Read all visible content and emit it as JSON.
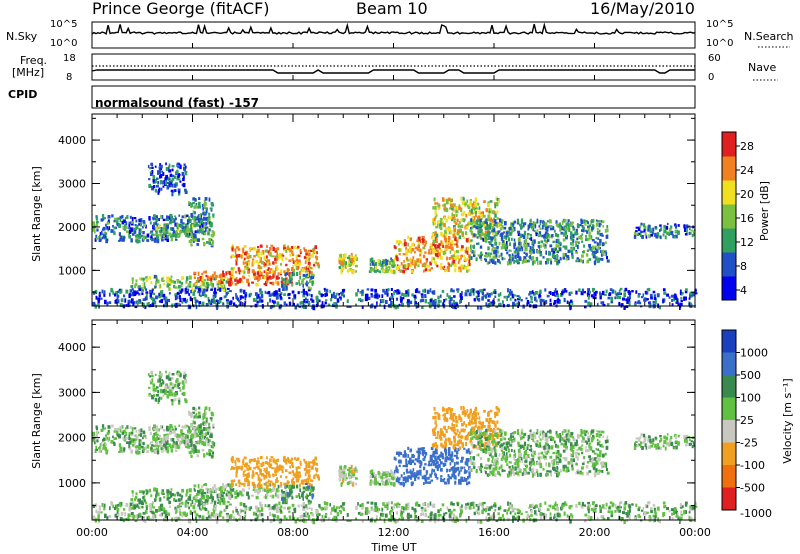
{
  "header": {
    "radar": "Prince George (fitACF)",
    "beam": "Beam 10",
    "date": "16/May/2010"
  },
  "nsky_panel": {
    "label": "N.Sky",
    "right_label": "N.Search",
    "left_ticks": [
      "10^5",
      "10^0"
    ],
    "right_ticks": [
      "10^5",
      "10^0"
    ]
  },
  "freq_panel": {
    "label_line1": "Freq.",
    "label_line2": "[MHz]",
    "right_label": "Nave",
    "left_ticks": [
      "18",
      "8"
    ],
    "right_ticks": [
      "60",
      "0"
    ]
  },
  "cpid": {
    "label": "CPID",
    "text": "normalsound (fast) -157"
  },
  "power_panel": {
    "ylabel": "Slant Range [km]",
    "yticks": [
      "4000",
      "3000",
      "2000",
      "1000"
    ],
    "colorbar_label": "Power [dB]",
    "colorbar_ticks": [
      "28",
      "24",
      "20",
      "16",
      "12",
      "8",
      "4"
    ],
    "colors": [
      "#0000ee",
      "#2050c8",
      "#30a060",
      "#7cc040",
      "#f0e020",
      "#f08020",
      "#e02020"
    ]
  },
  "velocity_panel": {
    "ylabel": "Slant Range [km]",
    "yticks": [
      "4000",
      "3000",
      "2000",
      "1000"
    ],
    "colorbar_label": "Velocity [m s⁻¹]",
    "colorbar_ticks": [
      "1000",
      "500",
      "100",
      "25",
      "-25",
      "-100",
      "-500",
      "-1000"
    ],
    "colors": [
      "#1a40c0",
      "#3a70c8",
      "#3a8a50",
      "#60c040",
      "#c8c8c0",
      "#f0a020",
      "#f07010",
      "#e02020"
    ]
  },
  "xaxis": {
    "label": "Time UT",
    "ticks": [
      "00:00",
      "04:00",
      "08:00",
      "12:00",
      "16:00",
      "20:00",
      "00:00"
    ]
  },
  "chart_data": {
    "type": "heatmap",
    "title": "Prince George (fitACF)  Beam 10  16/May/2010",
    "xlabel": "Time UT",
    "xlim_hours": [
      0,
      24
    ],
    "ylabel": "Slant Range [km]",
    "ylim_km": [
      180,
      4600
    ],
    "panels": [
      "N.Sky / N.Search",
      "Freq. / Nave",
      "CPID",
      "Power [dB]",
      "Velocity [m s-1]"
    ],
    "power_colorbar_range_db": [
      0,
      30
    ],
    "velocity_colorbar_range_ms": [
      -1000,
      1000
    ],
    "echo_regions": [
      {
        "t_start": 0.0,
        "t_end": 4.5,
        "range_km": [
          1700,
          2300
        ],
        "power_db": 8,
        "velocity_ms": 0
      },
      {
        "t_start": 2.5,
        "t_end": 4.0,
        "range_km": [
          1800,
          2100
        ],
        "power_db": 14,
        "velocity_ms": -20
      },
      {
        "t_start": 3.8,
        "t_end": 4.8,
        "range_km": [
          1600,
          2700
        ],
        "power_db": 10,
        "velocity_ms": 0
      },
      {
        "t_start": 2.2,
        "t_end": 3.7,
        "range_km": [
          2800,
          3500
        ],
        "power_db": 5,
        "velocity_ms": 0
      },
      {
        "t_start": 1.5,
        "t_end": 5.5,
        "range_km": [
          600,
          900
        ],
        "power_db": 14,
        "velocity_ms": 25
      },
      {
        "t_start": 4.0,
        "t_end": 8.0,
        "range_km": [
          700,
          1000
        ],
        "power_db": 26,
        "velocity_ms": -20
      },
      {
        "t_start": 5.5,
        "t_end": 9.0,
        "range_km": [
          950,
          1600
        ],
        "power_db": 22,
        "velocity_ms": -300
      },
      {
        "t_start": 7.5,
        "t_end": 8.8,
        "range_km": [
          600,
          1000
        ],
        "power_db": 12,
        "velocity_ms": 50
      },
      {
        "t_start": 9.8,
        "t_end": 10.5,
        "range_km": [
          1000,
          1400
        ],
        "power_db": 18,
        "velocity_ms": -50
      },
      {
        "t_start": 11.0,
        "t_end": 12.0,
        "range_km": [
          1000,
          1300
        ],
        "power_db": 12,
        "velocity_ms": -20
      },
      {
        "t_start": 12.0,
        "t_end": 15.0,
        "range_km": [
          1000,
          1800
        ],
        "power_db": 22,
        "velocity_ms": 200
      },
      {
        "t_start": 13.5,
        "t_end": 16.2,
        "range_km": [
          1800,
          2700
        ],
        "power_db": 18,
        "velocity_ms": -200
      },
      {
        "t_start": 15.0,
        "t_end": 20.5,
        "range_km": [
          1200,
          2200
        ],
        "power_db": 10,
        "velocity_ms": 0
      },
      {
        "t_start": 21.5,
        "t_end": 24.0,
        "range_km": [
          1800,
          2100
        ],
        "power_db": 8,
        "velocity_ms": 0
      },
      {
        "t_start": 0.0,
        "t_end": 24.0,
        "range_km": [
          180,
          600
        ],
        "power_db": 6,
        "velocity_ms": 0
      }
    ]
  }
}
